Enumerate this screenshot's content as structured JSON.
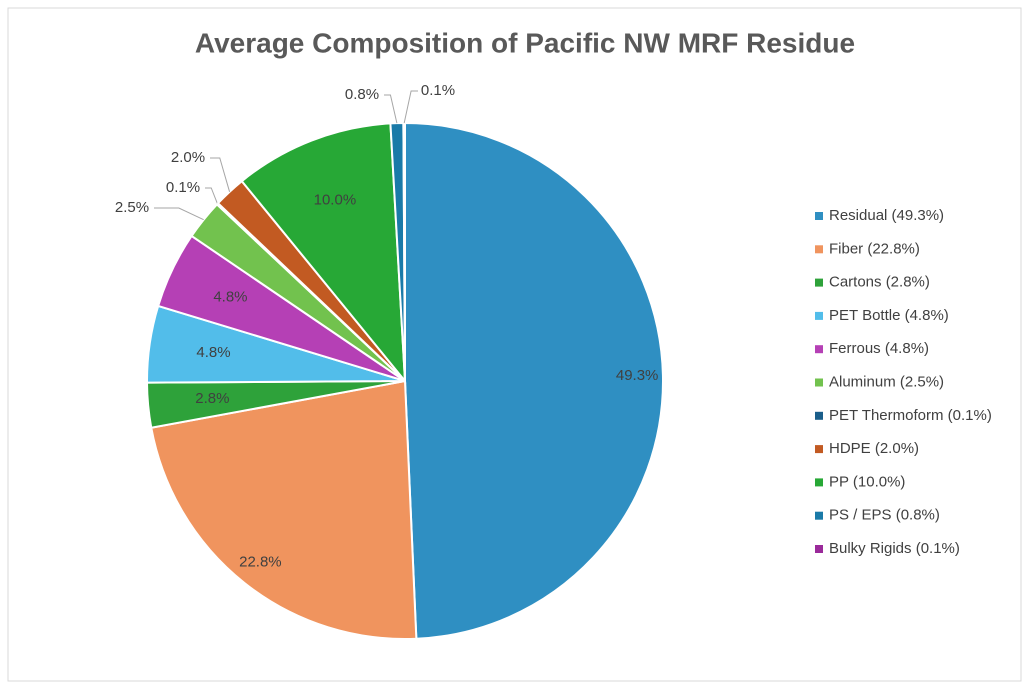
{
  "chart_data": {
    "type": "pie",
    "title": "Average Composition of Pacific NW MRF Residue",
    "categories": [
      "Residual (49.3%)",
      "Fiber (22.8%)",
      "Cartons (2.8%)",
      "PET Bottle (4.8%)",
      "Ferrous (4.8%)",
      "Aluminum (2.5%)",
      "PET Thermoform (0.1%)",
      "HDPE (2.0%)",
      "PP (10.0%)",
      "PS / EPS (0.8%)",
      "Bulky Rigids (0.1%)"
    ],
    "values": [
      49.3,
      22.8,
      2.8,
      4.8,
      4.8,
      2.5,
      0.1,
      2.0,
      10.0,
      0.8,
      0.1
    ],
    "value_labels": [
      "49.3%",
      "22.8%",
      "2.8%",
      "4.8%",
      "4.8%",
      "2.5%",
      "0.1%",
      "2.0%",
      "10.0%",
      "0.8%",
      "0.1%"
    ],
    "colors": [
      "#2f8fc2",
      "#f0945e",
      "#2ea23a",
      "#52bdea",
      "#b540b5",
      "#72c24e",
      "#1a5e8a",
      "#c25a22",
      "#27a836",
      "#1a7aa8",
      "#9a2a9a"
    ],
    "legend": "right"
  }
}
